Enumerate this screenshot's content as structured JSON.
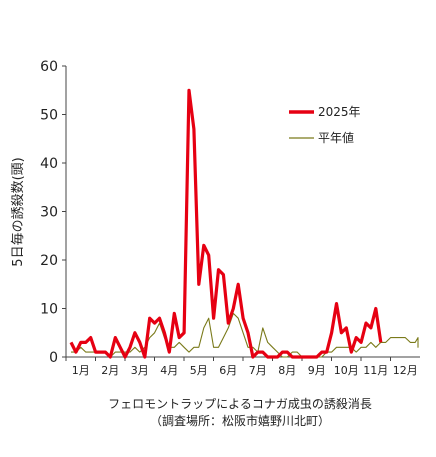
{
  "chart_data": {
    "type": "line",
    "ylabel": "5日毎の誘殺数(頭)",
    "ylim": [
      0,
      60
    ],
    "yticks": [
      0,
      10,
      20,
      30,
      40,
      50,
      60
    ],
    "xticks": [
      "1月",
      "2月",
      "3月",
      "4月",
      "5月",
      "6月",
      "7月",
      "8月",
      "9月",
      "10月",
      "11月",
      "12月"
    ],
    "grid": false,
    "legend_position": "top-right",
    "series": [
      {
        "name": "2025年",
        "color": "#e60012",
        "values": [
          3,
          1,
          3,
          3,
          4,
          1,
          1,
          1,
          0,
          4,
          2,
          0,
          2,
          5,
          3,
          0,
          8,
          7,
          8,
          5,
          1,
          9,
          4,
          5,
          55,
          47,
          15,
          23,
          21,
          8,
          18,
          17,
          7,
          10,
          15,
          8,
          5,
          0,
          1,
          1,
          0,
          0,
          0,
          1,
          1,
          0,
          0,
          0,
          0,
          0,
          0,
          1,
          1,
          5,
          11,
          5,
          6,
          1,
          4,
          3,
          7,
          6,
          10,
          3
        ]
      },
      {
        "name": "平年値",
        "color": "#7a7a1a",
        "values": [
          1,
          1,
          2,
          1,
          1,
          1,
          1,
          1,
          0,
          1,
          1,
          1,
          1,
          2,
          1,
          2,
          4,
          5,
          7,
          4,
          2,
          2,
          3,
          2,
          1,
          2,
          2,
          6,
          8,
          2,
          2,
          4,
          6,
          9,
          8,
          5,
          2,
          2,
          1,
          6,
          3,
          2,
          1,
          0,
          0,
          1,
          1,
          0,
          0,
          0,
          0,
          0,
          1,
          1,
          2,
          2,
          2,
          2,
          1,
          2,
          2,
          3,
          2,
          3,
          3,
          4,
          4,
          4,
          4,
          3,
          3,
          4,
          2,
          3,
          2
        ]
      }
    ]
  },
  "caption": {
    "line1": "フェロモントラップによるコナガ成虫の誘殺消長",
    "line2": "（調査場所：松阪市嬉野川北町）"
  }
}
